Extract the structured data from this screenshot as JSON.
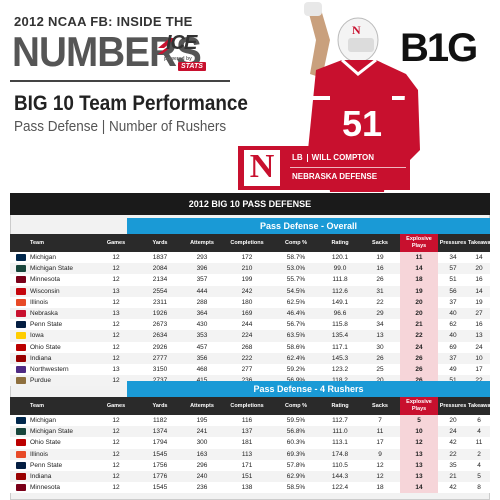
{
  "header": {
    "kicker": "2012 NCAA FB: INSIDE THE",
    "numbers": "NUMBERS",
    "ice_text": "ICE",
    "powered_by": "powered by",
    "stats_label": "STATS",
    "b1g_logo": "B1G",
    "title": "BIG 10 Team Performance",
    "subtitle": "Pass Defense | Number of Rushers"
  },
  "player": {
    "jersey_number": "51",
    "position": "LB",
    "name": "WILL COMPTON",
    "team": "NEBRASKA DEFENSE",
    "logo_letter": "N",
    "brand_color": "#c8102e"
  },
  "table": {
    "title": "2012 BIG 10 PASS DEFENSE",
    "columns": [
      "Team",
      "Games",
      "Yards",
      "Attempts",
      "Completions",
      "Comp %",
      "Rating",
      "Sacks",
      "Explosive Plays",
      "Pressures",
      "Takeaways"
    ],
    "section1": {
      "title": "Pass Defense - Overall",
      "rows": [
        {
          "team": "Michigan",
          "color": "#00274c",
          "games": "12",
          "yards": "1837",
          "attempts": "293",
          "completions": "172",
          "comp_pct": "58.7%",
          "rating": "120.1",
          "sacks": "19",
          "explosive": "11",
          "pressures": "34",
          "takeaways": "14"
        },
        {
          "team": "Michigan State",
          "color": "#18453b",
          "games": "12",
          "yards": "2084",
          "attempts": "396",
          "completions": "210",
          "comp_pct": "53.0%",
          "rating": "99.0",
          "sacks": "16",
          "explosive": "14",
          "pressures": "57",
          "takeaways": "20"
        },
        {
          "team": "Minnesota",
          "color": "#7a0019",
          "games": "12",
          "yards": "2134",
          "attempts": "357",
          "completions": "199",
          "comp_pct": "55.7%",
          "rating": "111.8",
          "sacks": "26",
          "explosive": "18",
          "pressures": "51",
          "takeaways": "16"
        },
        {
          "team": "Wisconsin",
          "color": "#c5050c",
          "games": "13",
          "yards": "2554",
          "attempts": "444",
          "completions": "242",
          "comp_pct": "54.5%",
          "rating": "112.6",
          "sacks": "31",
          "explosive": "19",
          "pressures": "56",
          "takeaways": "14"
        },
        {
          "team": "Illinois",
          "color": "#e84a27",
          "games": "12",
          "yards": "2311",
          "attempts": "288",
          "completions": "180",
          "comp_pct": "62.5%",
          "rating": "149.1",
          "sacks": "22",
          "explosive": "20",
          "pressures": "37",
          "takeaways": "19"
        },
        {
          "team": "Nebraska",
          "color": "#c8102e",
          "games": "13",
          "yards": "1926",
          "attempts": "364",
          "completions": "169",
          "comp_pct": "46.4%",
          "rating": "96.6",
          "sacks": "29",
          "explosive": "20",
          "pressures": "40",
          "takeaways": "27"
        },
        {
          "team": "Penn State",
          "color": "#041e42",
          "games": "12",
          "yards": "2673",
          "attempts": "430",
          "completions": "244",
          "comp_pct": "56.7%",
          "rating": "115.8",
          "sacks": "34",
          "explosive": "21",
          "pressures": "62",
          "takeaways": "16"
        },
        {
          "team": "Iowa",
          "color": "#ffcd00",
          "games": "12",
          "yards": "2634",
          "attempts": "353",
          "completions": "224",
          "comp_pct": "63.5%",
          "rating": "135.4",
          "sacks": "13",
          "explosive": "22",
          "pressures": "40",
          "takeaways": "13"
        },
        {
          "team": "Ohio State",
          "color": "#bb0000",
          "games": "12",
          "yards": "2926",
          "attempts": "457",
          "completions": "268",
          "comp_pct": "58.6%",
          "rating": "117.1",
          "sacks": "30",
          "explosive": "24",
          "pressures": "69",
          "takeaways": "24"
        },
        {
          "team": "Indiana",
          "color": "#990000",
          "games": "12",
          "yards": "2777",
          "attempts": "356",
          "completions": "222",
          "comp_pct": "62.4%",
          "rating": "145.3",
          "sacks": "26",
          "explosive": "26",
          "pressures": "37",
          "takeaways": "10"
        },
        {
          "team": "Northwestern",
          "color": "#4e2a84",
          "games": "13",
          "yards": "3150",
          "attempts": "468",
          "completions": "277",
          "comp_pct": "59.2%",
          "rating": "123.2",
          "sacks": "25",
          "explosive": "26",
          "pressures": "49",
          "takeaways": "17"
        },
        {
          "team": "Purdue",
          "color": "#8e6f3e",
          "games": "12",
          "yards": "2737",
          "attempts": "415",
          "completions": "236",
          "comp_pct": "56.9%",
          "rating": "118.2",
          "sacks": "20",
          "explosive": "26",
          "pressures": "51",
          "takeaways": "22"
        }
      ]
    },
    "section2": {
      "title": "Pass Defense - 4 Rushers",
      "rows": [
        {
          "team": "Michigan",
          "color": "#00274c",
          "games": "12",
          "yards": "1182",
          "attempts": "195",
          "completions": "116",
          "comp_pct": "59.5%",
          "rating": "112.7",
          "sacks": "7",
          "explosive": "5",
          "pressures": "20",
          "takeaways": "6"
        },
        {
          "team": "Michigan State",
          "color": "#18453b",
          "games": "12",
          "yards": "1374",
          "attempts": "241",
          "completions": "137",
          "comp_pct": "56.8%",
          "rating": "111.0",
          "sacks": "11",
          "explosive": "10",
          "pressures": "24",
          "takeaways": "4"
        },
        {
          "team": "Ohio State",
          "color": "#bb0000",
          "games": "12",
          "yards": "1794",
          "attempts": "300",
          "completions": "181",
          "comp_pct": "60.3%",
          "rating": "113.1",
          "sacks": "17",
          "explosive": "12",
          "pressures": "42",
          "takeaways": "11"
        },
        {
          "team": "Illinois",
          "color": "#e84a27",
          "games": "12",
          "yards": "1545",
          "attempts": "163",
          "completions": "113",
          "comp_pct": "69.3%",
          "rating": "174.8",
          "sacks": "9",
          "explosive": "13",
          "pressures": "22",
          "takeaways": "2"
        },
        {
          "team": "Penn State",
          "color": "#041e42",
          "games": "12",
          "yards": "1756",
          "attempts": "296",
          "completions": "171",
          "comp_pct": "57.8%",
          "rating": "110.5",
          "sacks": "12",
          "explosive": "13",
          "pressures": "35",
          "takeaways": "4"
        },
        {
          "team": "Indiana",
          "color": "#990000",
          "games": "12",
          "yards": "1776",
          "attempts": "240",
          "completions": "151",
          "comp_pct": "62.9%",
          "rating": "144.3",
          "sacks": "12",
          "explosive": "13",
          "pressures": "21",
          "takeaways": "5"
        },
        {
          "team": "Minnesota",
          "color": "#7a0019",
          "games": "12",
          "yards": "1545",
          "attempts": "236",
          "completions": "138",
          "comp_pct": "58.5%",
          "rating": "122.4",
          "sacks": "18",
          "explosive": "14",
          "pressures": "42",
          "takeaways": "8"
        }
      ]
    }
  }
}
